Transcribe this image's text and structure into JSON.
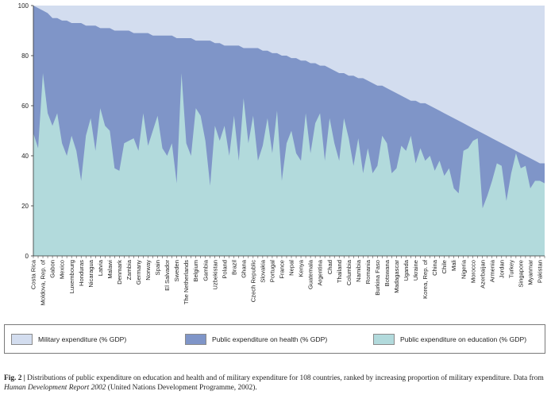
{
  "chart_data": {
    "type": "area",
    "stacked": true,
    "ylim": [
      0,
      100
    ],
    "yticks": [
      0,
      20,
      40,
      60,
      80,
      100
    ],
    "grid": false,
    "colors": {
      "military": "#d3ddef",
      "health": "#7f95c8",
      "education": "#b2dadc"
    },
    "series_order": [
      "education",
      "health",
      "military"
    ],
    "legend": {
      "military": "Military expenditure (% GDP)",
      "health": "Public expenditure on health (% GDP)",
      "education": "Public expenditure on education (% GDP)"
    },
    "category_labels": [
      "Costa Rica",
      "Moldova, Rep. of",
      "Gabon",
      "Mexico",
      "Luxembourg",
      "Honduras",
      "Nicaragua",
      "Latvia",
      "Malawi",
      "Denmark",
      "Zambia",
      "Germany",
      "Norway",
      "Spain",
      "El Salvador",
      "Sweden",
      "The Netherlands",
      "Belgium",
      "Gambia",
      "Uzbekistan",
      "Poland",
      "Brazil",
      "Ghana",
      "Czech Republic",
      "Slovakia",
      "Portugal",
      "France",
      "Nepal",
      "Kenya",
      "Guatemala",
      "Argentina",
      "Chad",
      "Thailand",
      "Columbia",
      "Namibia",
      "Romania",
      "Burkina Faso",
      "Botswana",
      "Madagascar",
      "Uganda",
      "Ukraine",
      "Korea, Rep. of",
      "China",
      "Chile",
      "Mali",
      "Nigeria",
      "Morocco",
      "Azerbaijan",
      "Armenia",
      "Jordan",
      "Turkey",
      "Singapore",
      "Myanmar",
      "Pakistan"
    ],
    "n_countries": 108,
    "education_plus_health": [
      100,
      99,
      98,
      97,
      95,
      95,
      94,
      94,
      93,
      93,
      93,
      92,
      92,
      92,
      91,
      91,
      91,
      90,
      90,
      90,
      90,
      89,
      89,
      89,
      89,
      88,
      88,
      88,
      88,
      88,
      87,
      87,
      87,
      87,
      86,
      86,
      86,
      86,
      85,
      85,
      84,
      84,
      84,
      84,
      83,
      83,
      83,
      83,
      82,
      82,
      81,
      81,
      80,
      80,
      79,
      79,
      78,
      78,
      77,
      77,
      76,
      76,
      75,
      74,
      73,
      73,
      72,
      72,
      71,
      71,
      70,
      69,
      68,
      68,
      67,
      66,
      65,
      64,
      63,
      62,
      62,
      61,
      61,
      60,
      59,
      58,
      57,
      56,
      55,
      54,
      53,
      52,
      51,
      50,
      49,
      48,
      47,
      46,
      45,
      44,
      43,
      42,
      41,
      40,
      39,
      38,
      37,
      37
    ],
    "education": [
      49,
      43,
      73,
      57,
      52,
      57,
      45,
      40,
      48,
      42,
      30,
      48,
      55,
      42,
      59,
      52,
      50,
      35,
      34,
      45,
      46,
      47,
      42,
      57,
      44,
      50,
      56,
      43,
      40,
      45,
      29,
      73,
      45,
      40,
      59,
      56,
      46,
      28,
      52,
      46,
      52,
      40,
      56,
      38,
      63,
      45,
      56,
      38,
      44,
      55,
      41,
      58,
      30,
      45,
      50,
      41,
      38,
      57,
      41,
      53,
      57,
      38,
      55,
      45,
      38,
      55,
      47,
      36,
      47,
      33,
      43,
      33,
      36,
      48,
      45,
      33,
      35,
      44,
      42,
      48,
      37,
      43,
      38,
      40,
      34,
      38,
      32,
      35,
      27,
      25,
      42,
      43,
      46,
      47,
      19,
      24,
      30,
      37,
      36,
      22,
      33,
      41,
      35,
      36,
      27,
      30,
      30,
      29
    ]
  },
  "caption": {
    "fig": "Fig. 2 |",
    "text": "Distributions of public expenditure on education and health and of military expenditure for 108 countries, ranked by increasing proportion of military expenditure. Data from",
    "source_title": "Human Development Report 2002",
    "source_rest": "(United Nations Development Programme, 2002)."
  }
}
